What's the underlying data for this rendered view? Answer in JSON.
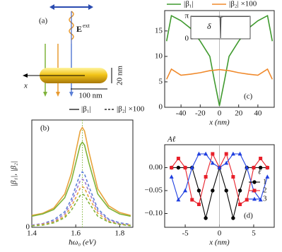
{
  "diagram": {
    "label": "(a)",
    "field": "E",
    "field_sup": "ext",
    "axis": "x",
    "height": "20 nm",
    "length": "100 nm"
  },
  "chart_data": [
    {
      "type": "line",
      "panel_label": "(b)",
      "xlabel": "ħω₀ (eV)",
      "ylabel": "|β₁|, |β₂|",
      "legend_entries": [
        {
          "label": "|β₁|",
          "style": "solid"
        },
        {
          "label": "|β₂| ×100",
          "style": "dashed"
        }
      ],
      "xlim": [
        1.4,
        1.86
      ],
      "ylim": [
        0,
        14.5
      ],
      "xticks": [
        1.4,
        1.6,
        1.8
      ],
      "yticks": [
        0
      ],
      "marker_x": 1.63,
      "x": [
        1.4,
        1.45,
        1.5,
        1.55,
        1.58,
        1.6,
        1.62,
        1.63,
        1.64,
        1.66,
        1.7,
        1.75,
        1.8,
        1.85
      ],
      "series": [
        {
          "color": "#e8a33c",
          "style": "solid",
          "values": [
            1.6,
            1.9,
            2.6,
            4.5,
            7.3,
            10.2,
            13.0,
            13.5,
            13.0,
            10.2,
            5.2,
            2.9,
            2.0,
            1.6
          ]
        },
        {
          "color": "#7fb33a",
          "style": "solid",
          "values": [
            1.5,
            1.8,
            2.4,
            4.0,
            6.3,
            8.7,
            11.1,
            11.5,
            11.1,
            8.7,
            4.5,
            2.6,
            1.8,
            1.5
          ]
        },
        {
          "color": "#5b7fd6",
          "style": "dashed",
          "values": [
            0.3,
            0.5,
            1.0,
            2.1,
            3.8,
            5.5,
            7.2,
            7.5,
            7.2,
            5.5,
            2.5,
            1.1,
            0.6,
            0.4
          ]
        },
        {
          "color": "#a07ccf",
          "style": "dashed",
          "values": [
            0.3,
            0.5,
            0.8,
            1.8,
            3.3,
            4.8,
            6.3,
            6.5,
            6.3,
            4.8,
            2.2,
            1.0,
            0.5,
            0.3
          ]
        },
        {
          "color": "#e8a33c",
          "style": "dashed",
          "values": [
            0.2,
            0.4,
            0.7,
            1.5,
            2.8,
            4.0,
            5.3,
            5.5,
            5.3,
            4.0,
            1.9,
            0.8,
            0.4,
            0.3
          ]
        },
        {
          "color": "#7fb33a",
          "style": "dashed",
          "values": [
            0.2,
            0.3,
            0.6,
            1.3,
            2.3,
            3.3,
            4.3,
            4.5,
            4.3,
            3.3,
            1.5,
            0.7,
            0.4,
            0.2
          ]
        }
      ]
    },
    {
      "type": "line",
      "panel_label": "(c)",
      "xlabel": "x (nm)",
      "xlim": [
        -57,
        57
      ],
      "ylim": [
        0,
        19
      ],
      "xticks": [
        -40,
        -20,
        0,
        20,
        40
      ],
      "yticks": [
        0,
        5,
        10,
        15
      ],
      "x": [
        -55,
        -50,
        -40,
        -30,
        -20,
        -10,
        -5,
        0,
        5,
        10,
        20,
        30,
        40,
        50,
        55
      ],
      "series": [
        {
          "name": "|β₁|",
          "color": "#3f9a2e",
          "style": "solid",
          "values": [
            13,
            18,
            17,
            15.5,
            13,
            10,
            5,
            0.3,
            5,
            10,
            13,
            15.5,
            17,
            18,
            13
          ]
        },
        {
          "name": "|β₂| ×100",
          "color": "#f08a2c",
          "style": "solid",
          "values": [
            5.5,
            7.5,
            6.3,
            6.5,
            6.8,
            7.2,
            7.3,
            7.4,
            7.3,
            7.2,
            6.8,
            6.5,
            6.3,
            7.5,
            5.5
          ]
        }
      ],
      "inset": {
        "label": "δ",
        "xlim": [
          -57,
          57
        ],
        "ylim": [
          0,
          3.1416
        ],
        "yticks": [
          {
            "value": 0,
            "label": "0"
          },
          {
            "value": 3.1416,
            "label": "π"
          }
        ],
        "x": [
          -55,
          -5,
          -1,
          0,
          1,
          5,
          55
        ],
        "values": [
          3.1,
          3.1,
          3.0,
          0.1,
          3.0,
          3.1,
          3.1
        ],
        "color": "#555555"
      }
    },
    {
      "type": "line",
      "panel_label": "(d)",
      "xlabel": "x (nm)",
      "ylabel": "Aℓ",
      "legend_title": "ℓ",
      "xlim": [
        -8,
        8
      ],
      "ylim": [
        -0.13,
        0.05
      ],
      "xticks": [
        -5,
        0,
        5
      ],
      "yticks": [
        {
          "value": -0.1,
          "label": "−0.10"
        },
        {
          "value": -0.05,
          "label": "−0.05"
        },
        {
          "value": 0,
          "label": "0.00"
        }
      ],
      "x": [
        -7,
        -6,
        -5,
        -4,
        -3,
        -2,
        -1,
        0,
        1,
        2,
        3,
        4,
        5,
        6,
        7
      ],
      "series": [
        {
          "name": "1",
          "color": "#000000",
          "marker": "circle",
          "values": [
            0.0,
            0.0,
            0.0,
            0.0,
            -0.05,
            -0.11,
            -0.05,
            0.0,
            -0.05,
            -0.11,
            -0.05,
            0.0,
            0.0,
            0.0,
            0.0
          ]
        },
        {
          "name": "2",
          "color": "#e8202a",
          "marker": "square",
          "values": [
            0.0,
            0.02,
            0.0,
            -0.07,
            -0.08,
            -0.02,
            0.03,
            0.0,
            0.03,
            -0.02,
            -0.08,
            -0.07,
            0.0,
            0.02,
            0.0
          ]
        },
        {
          "name": "3",
          "color": "#1f3fe0",
          "marker": "triangle",
          "values": [
            -0.02,
            -0.07,
            -0.05,
            0.0,
            0.03,
            0.03,
            0.01,
            0.0,
            0.01,
            0.03,
            0.03,
            0.0,
            -0.05,
            -0.07,
            -0.02
          ]
        }
      ]
    }
  ]
}
